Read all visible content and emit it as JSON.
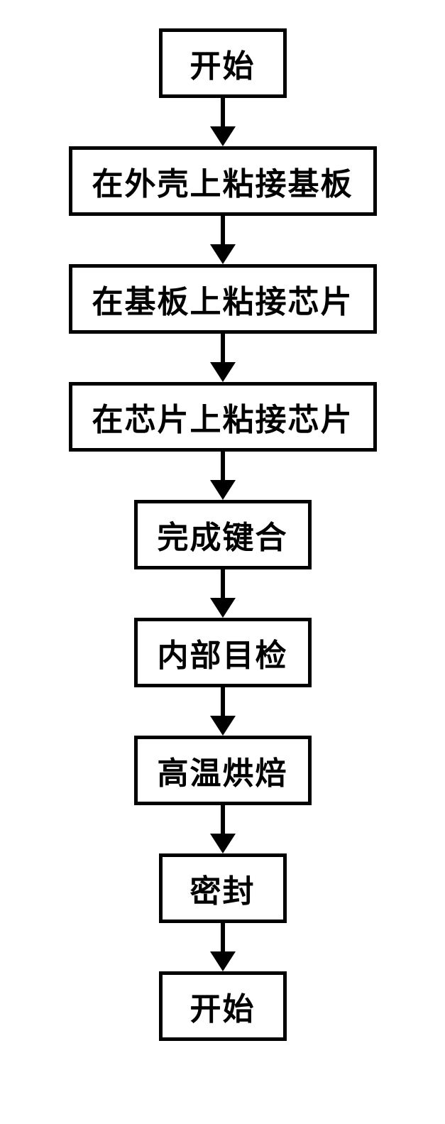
{
  "flowchart": {
    "type": "flowchart",
    "direction": "vertical",
    "nodes": [
      {
        "id": "n0",
        "label": "开始"
      },
      {
        "id": "n1",
        "label": "在外壳上粘接基板"
      },
      {
        "id": "n2",
        "label": "在基板上粘接芯片"
      },
      {
        "id": "n3",
        "label": "在芯片上粘接芯片"
      },
      {
        "id": "n4",
        "label": "完成键合"
      },
      {
        "id": "n5",
        "label": "内部目检"
      },
      {
        "id": "n6",
        "label": "高温烘焙"
      },
      {
        "id": "n7",
        "label": "密封"
      },
      {
        "id": "n8",
        "label": "开始"
      }
    ],
    "edges": [
      {
        "from": "n0",
        "to": "n1"
      },
      {
        "from": "n1",
        "to": "n2"
      },
      {
        "from": "n2",
        "to": "n3"
      },
      {
        "from": "n3",
        "to": "n4"
      },
      {
        "from": "n4",
        "to": "n5"
      },
      {
        "from": "n5",
        "to": "n6"
      },
      {
        "from": "n6",
        "to": "n7"
      },
      {
        "from": "n7",
        "to": "n8"
      }
    ],
    "style": {
      "node_border_color": "#000000",
      "node_border_width": 5,
      "node_background": "#ffffff",
      "node_font_size": 44,
      "node_font_weight": 900,
      "node_text_color": "#000000",
      "arrow_color": "#000000",
      "arrow_line_width": 6,
      "arrow_head_width": 36,
      "arrow_head_height": 28,
      "arrow_total_height": 68,
      "background_color": "#ffffff"
    }
  }
}
